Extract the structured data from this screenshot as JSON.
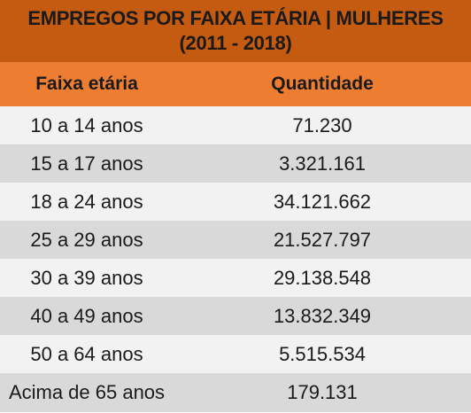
{
  "title": {
    "line1": "EMPREGOS POR FAIXA ETÁRIA | MULHERES",
    "line2": "(2011 - 2018)"
  },
  "headers": {
    "age": "Faixa etária",
    "quantity": "Quantidade"
  },
  "rows": [
    {
      "age": "10 a 14 anos",
      "quantity": "71.230"
    },
    {
      "age": "15 a 17 anos",
      "quantity": "3.321.161"
    },
    {
      "age": "18 a 24 anos",
      "quantity": "34.121.662"
    },
    {
      "age": "25 a 29 anos",
      "quantity": "21.527.797"
    },
    {
      "age": "30 a 39 anos",
      "quantity": "29.138.548"
    },
    {
      "age": "40 a 49 anos",
      "quantity": "13.832.349"
    },
    {
      "age": "50 a 64 anos",
      "quantity": "5.515.534"
    },
    {
      "age": "Acima de 65 anos",
      "quantity": "179.131"
    }
  ],
  "colors": {
    "title_bg": "#c55a11",
    "header_bg": "#ed7d31",
    "row_light": "#f2f2f2",
    "row_dark": "#d9d9d9"
  }
}
